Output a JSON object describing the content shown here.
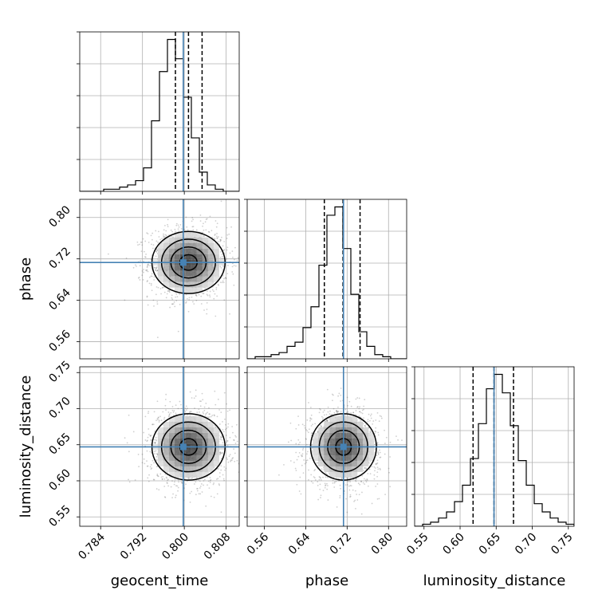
{
  "chart_data": {
    "type": "corner",
    "parameters": [
      "geocent_time",
      "phase",
      "luminosity_distance"
    ],
    "labels": {
      "x": [
        "geocent_time",
        "phase",
        "luminosity_distance"
      ],
      "y_phase": "phase",
      "y_luminosity_distance": "luminosity_distance"
    },
    "truths": {
      "geocent_time": 0.7998,
      "phase": 0.713,
      "luminosity_distance": 0.647
    },
    "ranges": {
      "geocent_time": [
        0.78,
        0.8105
      ],
      "phase": [
        0.527,
        0.835
      ],
      "luminosity_distance": [
        0.537,
        0.758
      ]
    },
    "ticks": {
      "geocent_time": [
        "0.784",
        "0.792",
        "0.800",
        "0.808"
      ],
      "phase": [
        "0.56",
        "0.64",
        "0.72",
        "0.80"
      ],
      "luminosity_distance": [
        "0.55",
        "0.60",
        "0.65",
        "0.70",
        "0.75"
      ]
    },
    "quantiles": {
      "geocent_time": [
        0.7983,
        0.8008,
        0.8034
      ],
      "phase": [
        0.676,
        0.712,
        0.745
      ],
      "luminosity_distance": [
        0.618,
        0.647,
        0.674
      ]
    },
    "histograms": {
      "geocent_time": {
        "bins": 20,
        "counts": [
          0,
          0,
          0,
          1,
          1,
          2,
          3,
          5,
          11,
          33,
          56,
          71,
          62,
          44,
          25,
          9,
          3,
          1,
          0,
          0
        ]
      },
      "phase": {
        "bins": 20,
        "counts": [
          0,
          1,
          1,
          2,
          3,
          6,
          8,
          15,
          25,
          45,
          69,
          73,
          53,
          31,
          13,
          6,
          2,
          1,
          0,
          0
        ]
      },
      "luminosity_distance": {
        "bins": 20,
        "counts": [
          0,
          1,
          2,
          4,
          7,
          12,
          20,
          33,
          50,
          67,
          74,
          65,
          49,
          32,
          20,
          11,
          7,
          4,
          2,
          1
        ]
      }
    },
    "grid": true,
    "colors": {
      "truth": "#4682b4",
      "hist": "#000000",
      "grid": "#b0b0b0",
      "points": "#555555"
    }
  }
}
